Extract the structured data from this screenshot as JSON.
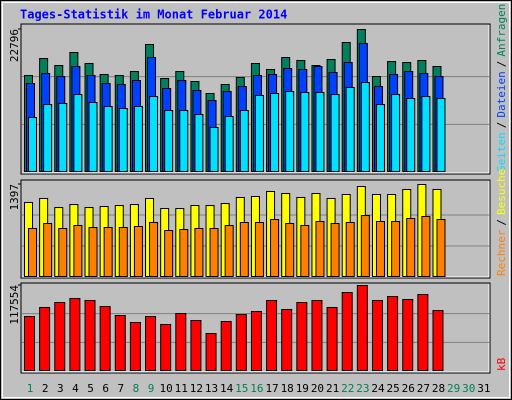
{
  "chart_data": {
    "type": "bar",
    "title": "Tages-Statistik im Monat Februar 2014",
    "legend_separator": "/",
    "categories": [
      "1",
      "2",
      "3",
      "4",
      "5",
      "6",
      "7",
      "8",
      "9",
      "10",
      "11",
      "12",
      "13",
      "14",
      "15",
      "16",
      "17",
      "18",
      "19",
      "20",
      "21",
      "22",
      "23",
      "24",
      "25",
      "26",
      "27",
      "28",
      "29",
      "30",
      "31"
    ],
    "label_colors": [
      "#00805c",
      "#000000",
      "#000000",
      "#000000",
      "#000000",
      "#000000",
      "#000000",
      "#00805c",
      "#00805c",
      "#000000",
      "#000000",
      "#000000",
      "#000000",
      "#000000",
      "#00805c",
      "#00805c",
      "#000000",
      "#000000",
      "#000000",
      "#000000",
      "#000000",
      "#00805c",
      "#00805c",
      "#000000",
      "#000000",
      "#000000",
      "#000000",
      "#000000",
      "#00805c",
      "#00805c",
      "#000000"
    ],
    "panels": [
      {
        "ylim": [
          0,
          22796
        ],
        "yticks": [
          22796
        ],
        "series": [
          {
            "name": "Anfragen",
            "color": "#00805c",
            "values": [
              15462,
              18172,
              17057,
              19129,
              17376,
              15622,
              15462,
              16100,
              20404,
              14984,
              16100,
              14506,
              12593,
              14028,
              15144,
              17376,
              16419,
              18332,
              17854,
              17057,
              18013,
              20723,
              22796,
              15303,
              17695,
              17535,
              17854,
              16897,
              null,
              null,
              null
            ]
          },
          {
            "name": "Dateien",
            "color": "#0040ff",
            "values": [
              14187,
              15781,
              15302,
              16896,
              15462,
              14187,
              14027,
              14665,
              18331,
              13390,
              14665,
              13071,
              11477,
              12911,
              13708,
              15462,
              15621,
              16578,
              16418,
              16896,
              15940,
              17534,
              20563,
              13708,
              15621,
              16099,
              15781,
              15302,
              null,
              null,
              null
            ]
          },
          {
            "name": "Seiten",
            "color": "#00e0ff",
            "values": [
              8767,
              10839,
              10999,
              12433,
              11158,
              10520,
              10202,
              10520,
              12114,
              9883,
              9883,
              9245,
              7173,
              8926,
              9883,
              12274,
              12593,
              12911,
              12752,
              12752,
              12433,
              13549,
              14346,
              10839,
              12433,
              11796,
              12114,
              11796,
              null,
              null,
              null
            ]
          }
        ]
      },
      {
        "ylim": [
          0,
          1397
        ],
        "yticks": [
          1397
        ],
        "series": [
          {
            "name": "Besuche",
            "color": "#ffff00",
            "values": [
              1127,
              1187,
              1051,
              1096,
              1051,
              1066,
              1081,
              1096,
              1187,
              1036,
              1036,
              1081,
              1081,
              1111,
              1202,
              1217,
              1292,
              1262,
              1202,
              1262,
              1187,
              1247,
              1367,
              1247,
              1247,
              1322,
              1397,
              1322,
              null,
              null,
              null
            ]
          },
          {
            "name": "Rechner",
            "color": "#ff8000",
            "values": [
              736,
              811,
              736,
              781,
              751,
              751,
              751,
              766,
              826,
              706,
              721,
              736,
              736,
              781,
              826,
              826,
              871,
              811,
              781,
              841,
              811,
              826,
              931,
              841,
              841,
              886,
              916,
              871,
              null,
              null,
              null
            ]
          }
        ]
      },
      {
        "ylim": [
          0,
          117554
        ],
        "yticks": [
          117554
        ],
        "series": [
          {
            "name": "kB",
            "color": "#ff0000",
            "values": [
              75185,
              87488,
              94323,
              99791,
              97057,
              88855,
              76552,
              66983,
              75185,
              64249,
              79286,
              69717,
              51946,
              68350,
              77919,
              82020,
              97057,
              84754,
              94323,
              97057,
              87488,
              107993,
              117554,
              97057,
              102525,
              98424,
              105259,
              83387,
              null,
              null,
              null
            ]
          }
        ]
      }
    ]
  }
}
